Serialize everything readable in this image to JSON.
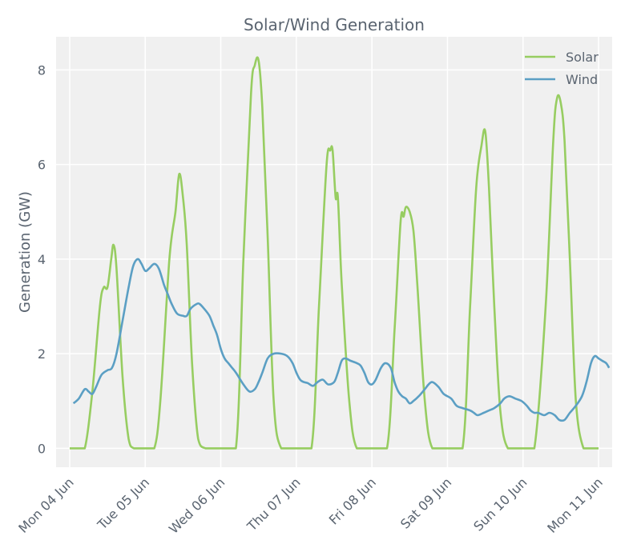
{
  "chart_data": {
    "type": "line",
    "title": "Solar/Wind Generation",
    "xlabel": "",
    "ylabel": "Generation (GW)",
    "ylim": [
      -0.4,
      8.7
    ],
    "yticks": [
      0,
      2,
      4,
      6,
      8
    ],
    "x_range_days": [
      -0.18,
      7.18
    ],
    "x_ticks": [
      "Mon 04 Jun",
      "Tue 05 Jun",
      "Wed 06 Jun",
      "Thu 07 Jun",
      "Fri 08 Jun",
      "Sat 09 Jun",
      "Sun 10 Jun",
      "Mon 11 Jun"
    ],
    "grid": true,
    "legend_position": "top-right",
    "series": [
      {
        "name": "Solar",
        "color": "#97cd61",
        "points": [
          [
            0,
            0
          ],
          [
            0.1,
            0
          ],
          [
            0.2,
            0
          ],
          [
            0.3,
            1.2
          ],
          [
            0.4,
            3.0
          ],
          [
            0.45,
            3.4
          ],
          [
            0.5,
            3.4
          ],
          [
            0.55,
            4.0
          ],
          [
            0.58,
            4.3
          ],
          [
            0.62,
            3.8
          ],
          [
            0.7,
            1.5
          ],
          [
            0.78,
            0.2
          ],
          [
            0.85,
            0
          ],
          [
            1.0,
            0
          ],
          [
            1.12,
            0
          ],
          [
            1.2,
            1.0
          ],
          [
            1.32,
            4.0
          ],
          [
            1.4,
            5.0
          ],
          [
            1.45,
            5.8
          ],
          [
            1.5,
            5.3
          ],
          [
            1.55,
            4.3
          ],
          [
            1.62,
            1.8
          ],
          [
            1.7,
            0.2
          ],
          [
            1.8,
            0
          ],
          [
            2.0,
            0
          ],
          [
            2.2,
            0
          ],
          [
            2.3,
            4.0
          ],
          [
            2.4,
            7.5
          ],
          [
            2.45,
            8.1
          ],
          [
            2.5,
            8.2
          ],
          [
            2.55,
            7.2
          ],
          [
            2.62,
            4.5
          ],
          [
            2.7,
            1.0
          ],
          [
            2.8,
            0
          ],
          [
            3.0,
            0
          ],
          [
            3.2,
            0
          ],
          [
            3.3,
            3.0
          ],
          [
            3.4,
            6.0
          ],
          [
            3.45,
            6.3
          ],
          [
            3.48,
            6.3
          ],
          [
            3.52,
            5.3
          ],
          [
            3.55,
            5.3
          ],
          [
            3.6,
            3.5
          ],
          [
            3.7,
            1.0
          ],
          [
            3.8,
            0
          ],
          [
            4.0,
            0
          ],
          [
            4.2,
            0
          ],
          [
            4.3,
            2.5
          ],
          [
            4.38,
            4.8
          ],
          [
            4.42,
            4.9
          ],
          [
            4.45,
            5.1
          ],
          [
            4.5,
            5.0
          ],
          [
            4.55,
            4.6
          ],
          [
            4.6,
            3.5
          ],
          [
            4.7,
            1.0
          ],
          [
            4.8,
            0
          ],
          [
            5.0,
            0
          ],
          [
            5.2,
            0
          ],
          [
            5.3,
            3.0
          ],
          [
            5.38,
            5.5
          ],
          [
            5.45,
            6.4
          ],
          [
            5.5,
            6.7
          ],
          [
            5.55,
            5.5
          ],
          [
            5.62,
            3.0
          ],
          [
            5.7,
            0.8
          ],
          [
            5.8,
            0
          ],
          [
            6.0,
            0
          ],
          [
            6.15,
            0
          ],
          [
            6.3,
            3.0
          ],
          [
            6.4,
            6.5
          ],
          [
            6.45,
            7.4
          ],
          [
            6.5,
            7.3
          ],
          [
            6.55,
            6.5
          ],
          [
            6.62,
            4.0
          ],
          [
            6.7,
            1.0
          ],
          [
            6.8,
            0
          ],
          [
            6.9,
            0
          ],
          [
            7.0,
            0
          ]
        ]
      },
      {
        "name": "Wind",
        "color": "#5b9fc4",
        "points": [
          [
            0.05,
            0.95
          ],
          [
            0.12,
            1.05
          ],
          [
            0.2,
            1.25
          ],
          [
            0.25,
            1.2
          ],
          [
            0.3,
            1.15
          ],
          [
            0.35,
            1.3
          ],
          [
            0.42,
            1.55
          ],
          [
            0.5,
            1.65
          ],
          [
            0.56,
            1.7
          ],
          [
            0.62,
            2.0
          ],
          [
            0.7,
            2.7
          ],
          [
            0.78,
            3.4
          ],
          [
            0.84,
            3.85
          ],
          [
            0.9,
            4.0
          ],
          [
            0.95,
            3.9
          ],
          [
            1.0,
            3.75
          ],
          [
            1.05,
            3.8
          ],
          [
            1.12,
            3.9
          ],
          [
            1.18,
            3.8
          ],
          [
            1.25,
            3.45
          ],
          [
            1.3,
            3.25
          ],
          [
            1.35,
            3.05
          ],
          [
            1.42,
            2.85
          ],
          [
            1.5,
            2.8
          ],
          [
            1.55,
            2.8
          ],
          [
            1.6,
            2.95
          ],
          [
            1.68,
            3.05
          ],
          [
            1.72,
            3.05
          ],
          [
            1.78,
            2.95
          ],
          [
            1.85,
            2.8
          ],
          [
            1.9,
            2.6
          ],
          [
            1.95,
            2.4
          ],
          [
            2.0,
            2.1
          ],
          [
            2.05,
            1.9
          ],
          [
            2.1,
            1.8
          ],
          [
            2.15,
            1.7
          ],
          [
            2.2,
            1.6
          ],
          [
            2.3,
            1.35
          ],
          [
            2.38,
            1.2
          ],
          [
            2.45,
            1.25
          ],
          [
            2.5,
            1.4
          ],
          [
            2.55,
            1.6
          ],
          [
            2.62,
            1.9
          ],
          [
            2.7,
            2.0
          ],
          [
            2.8,
            2.0
          ],
          [
            2.88,
            1.95
          ],
          [
            2.95,
            1.8
          ],
          [
            3.0,
            1.6
          ],
          [
            3.05,
            1.45
          ],
          [
            3.1,
            1.4
          ],
          [
            3.15,
            1.38
          ],
          [
            3.22,
            1.32
          ],
          [
            3.28,
            1.4
          ],
          [
            3.35,
            1.45
          ],
          [
            3.42,
            1.35
          ],
          [
            3.5,
            1.4
          ],
          [
            3.55,
            1.6
          ],
          [
            3.6,
            1.85
          ],
          [
            3.65,
            1.9
          ],
          [
            3.72,
            1.85
          ],
          [
            3.8,
            1.8
          ],
          [
            3.85,
            1.75
          ],
          [
            3.9,
            1.6
          ],
          [
            3.95,
            1.4
          ],
          [
            4.0,
            1.35
          ],
          [
            4.05,
            1.45
          ],
          [
            4.12,
            1.7
          ],
          [
            4.18,
            1.8
          ],
          [
            4.25,
            1.7
          ],
          [
            4.3,
            1.4
          ],
          [
            4.35,
            1.2
          ],
          [
            4.4,
            1.1
          ],
          [
            4.45,
            1.05
          ],
          [
            4.5,
            0.95
          ],
          [
            4.55,
            1.0
          ],
          [
            4.62,
            1.1
          ],
          [
            4.7,
            1.25
          ],
          [
            4.75,
            1.35
          ],
          [
            4.8,
            1.4
          ],
          [
            4.88,
            1.3
          ],
          [
            4.95,
            1.15
          ],
          [
            5.05,
            1.05
          ],
          [
            5.12,
            0.9
          ],
          [
            5.2,
            0.85
          ],
          [
            5.3,
            0.8
          ],
          [
            5.35,
            0.75
          ],
          [
            5.4,
            0.7
          ],
          [
            5.48,
            0.75
          ],
          [
            5.55,
            0.8
          ],
          [
            5.62,
            0.85
          ],
          [
            5.7,
            0.95
          ],
          [
            5.75,
            1.05
          ],
          [
            5.82,
            1.1
          ],
          [
            5.9,
            1.05
          ],
          [
            5.98,
            1.0
          ],
          [
            6.05,
            0.9
          ],
          [
            6.1,
            0.8
          ],
          [
            6.15,
            0.75
          ],
          [
            6.2,
            0.75
          ],
          [
            6.28,
            0.7
          ],
          [
            6.35,
            0.75
          ],
          [
            6.42,
            0.7
          ],
          [
            6.48,
            0.6
          ],
          [
            6.55,
            0.6
          ],
          [
            6.62,
            0.75
          ],
          [
            6.7,
            0.9
          ],
          [
            6.78,
            1.1
          ],
          [
            6.84,
            1.4
          ],
          [
            6.9,
            1.8
          ],
          [
            6.95,
            1.95
          ],
          [
            7.0,
            1.9
          ],
          [
            7.05,
            1.85
          ],
          [
            7.1,
            1.8
          ],
          [
            7.14,
            1.7
          ]
        ]
      }
    ]
  }
}
